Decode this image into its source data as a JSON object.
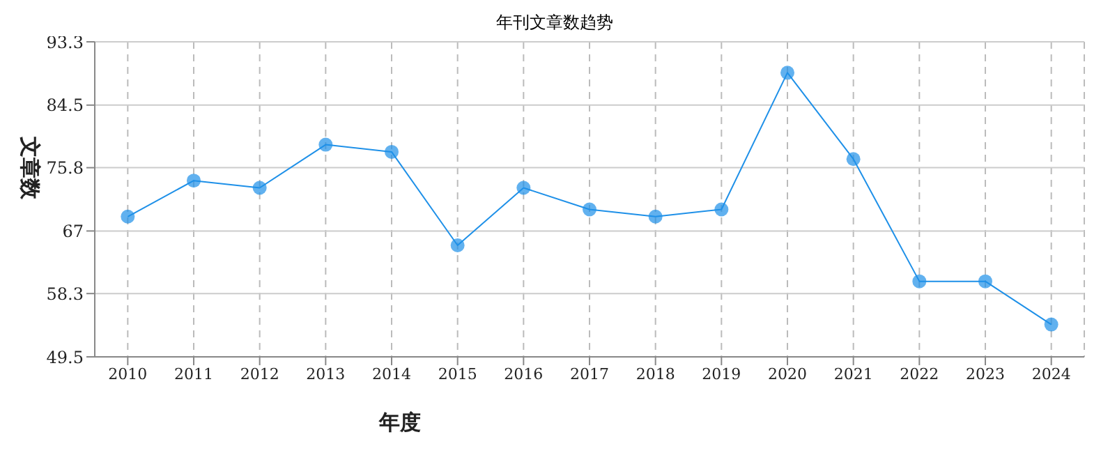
{
  "chart_data": {
    "type": "line",
    "title": "年刊文章数趋势",
    "xlabel": "年度",
    "ylabel": "文章数",
    "categories": [
      "2010",
      "2011",
      "2012",
      "2013",
      "2014",
      "2015",
      "2016",
      "2017",
      "2018",
      "2019",
      "2020",
      "2021",
      "2022",
      "2023",
      "2024"
    ],
    "series": [
      {
        "color": "#1e90e8",
        "values": [
          69,
          74,
          73,
          79,
          78,
          65,
          73,
          70,
          69,
          70,
          89,
          77,
          60,
          60,
          54
        ]
      }
    ],
    "ylim": [
      49.5,
      93.3
    ],
    "yticks": [
      49.5,
      58.3,
      67.0,
      {
        "value": 75.8,
        "label": "75.8"
      },
      84.5,
      93.3
    ],
    "grid": true,
    "marker": "circle",
    "line_style": "solid"
  }
}
